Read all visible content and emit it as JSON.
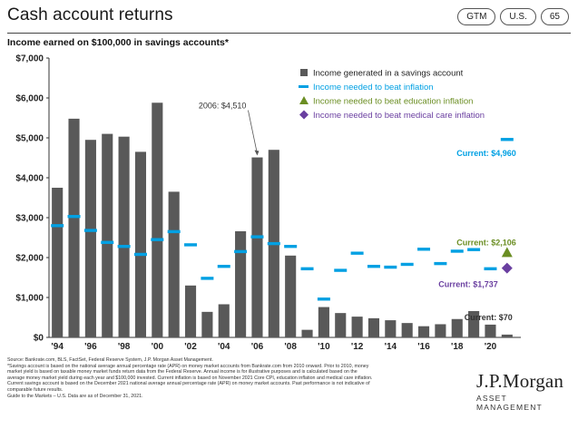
{
  "header": {
    "title": "Cash account returns",
    "badges": [
      "GTM",
      "U.S.",
      "65"
    ]
  },
  "colors": {
    "bars": "#595959",
    "inflation": "#00a0e3",
    "education": "#6b8e23",
    "medical": "#6a3fa0",
    "labels": "#00a0e3"
  },
  "chart_data": {
    "type": "bar",
    "title": "Income earned on $100,000 in savings accounts*",
    "xlabel": "",
    "ylabel": "",
    "ylim": [
      0,
      7000
    ],
    "yticks": [
      "$0",
      "$1,000",
      "$2,000",
      "$3,000",
      "$4,000",
      "$5,000",
      "$6,000",
      "$7,000"
    ],
    "grid": false,
    "legend_position": "top-right",
    "categories": [
      1994,
      1995,
      1996,
      1997,
      1998,
      1999,
      2000,
      2001,
      2002,
      2003,
      2004,
      2005,
      2006,
      2007,
      2008,
      2009,
      2010,
      2011,
      2012,
      2013,
      2014,
      2015,
      2016,
      2017,
      2018,
      2019,
      2020,
      2021
    ],
    "xticklabels": [
      "'94",
      "'96",
      "'98",
      "'00",
      "'02",
      "'04",
      "'06",
      "'08",
      "'10",
      "'12",
      "'14",
      "'16",
      "'18",
      "'20"
    ],
    "series": [
      {
        "name": "Income generated in a savings  account",
        "type": "bar",
        "values": [
          3750,
          5480,
          4950,
          5100,
          5030,
          4650,
          5880,
          3650,
          1300,
          640,
          830,
          2660,
          4510,
          4700,
          2050,
          190,
          760,
          610,
          520,
          480,
          430,
          360,
          280,
          330,
          460,
          660,
          320,
          70
        ]
      },
      {
        "name": "Income needed to beat inflation",
        "type": "marker-dash",
        "values": [
          2800,
          3030,
          2680,
          2380,
          2280,
          2080,
          2450,
          2650,
          2320,
          1480,
          1780,
          2150,
          2520,
          2350,
          2280,
          1720,
          960,
          1680,
          2110,
          1780,
          1760,
          1830,
          2210,
          1850,
          2160,
          2200,
          1720,
          4960
        ]
      },
      {
        "name": "Income needed to beat education inflation",
        "type": "marker-triangle",
        "x": [
          2021
        ],
        "values": [
          2106
        ]
      },
      {
        "name": "Income needed to beat medical care inflation",
        "type": "marker-diamond",
        "x": [
          2021
        ],
        "values": [
          1737
        ]
      }
    ],
    "annotations": {
      "peak_2006": "2006: $4,510",
      "current_inflation": "Current: $4,960",
      "current_education": "Current: $2,106",
      "current_medical": "Current: $1,737",
      "current_income": "Current: $70"
    }
  },
  "footnotes": [
    "Source: Bankrate.com, BLS, FactSet, Federal Reserve System, J.P. Morgan Asset Management.",
    "*Savings account is based on the national average annual percentage rate (APR) on money market accounts from Bankrate.com from 2010 onward. Prior to 2010, money",
    "market yield is based on taxable money market funds return data from the Federal Reserve. Annual income is for illustrative purposes and is calculated based on the",
    "average money market yield during each year and $100,000 invested. Current inflation is based on November 2021 Core CPI, education inflation and medical care inflation.",
    "Current savings account is based on the December 2021 national average annual percentage rate (APR) on money market accounts. Past performance is not indicative of",
    "comparable future results.",
    "Guide to the Markets – U.S. Data are as of December 31, 2021."
  ],
  "logo": {
    "main": "J.P.Morgan",
    "sub": "ASSET MANAGEMENT"
  }
}
